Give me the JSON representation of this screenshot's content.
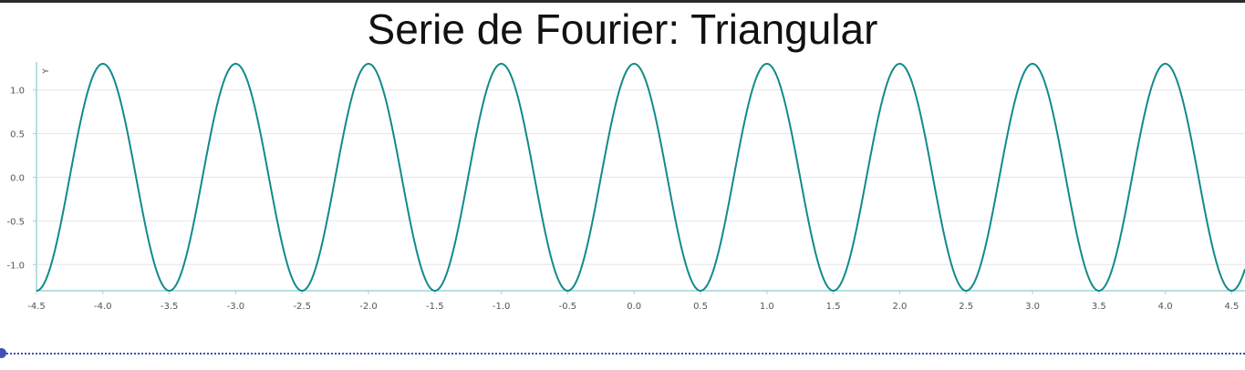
{
  "chart_data": {
    "type": "line",
    "title": "Serie de Fourier: Triangular",
    "xlabel": "",
    "ylabel": "Y",
    "xlim": [
      -4.5,
      4.6
    ],
    "ylim": [
      -1.3,
      1.3
    ],
    "grid": true,
    "x_ticks": [
      "-4.5",
      "-4.0",
      "-3.5",
      "-3.0",
      "-2.5",
      "-2.0",
      "-1.5",
      "-1.0",
      "-0.5",
      "0.0",
      "0.5",
      "1.0",
      "1.5",
      "2.0",
      "2.5",
      "3.0",
      "3.5",
      "4.0",
      "4.5"
    ],
    "y_ticks": [
      "1.0",
      "0.5",
      "0.0",
      "-0.5",
      "-1.0"
    ],
    "series": [
      {
        "function": "1.3*cos(2*pi*x)",
        "period": 1,
        "amplitude": 1.3,
        "color": "#138a8a"
      }
    ]
  },
  "slider": {
    "value": 0,
    "color": "#3f51b5"
  },
  "colors": {
    "axis": "#9fd3d8",
    "grid": "#e6e6e6",
    "line": "#138a8a"
  }
}
